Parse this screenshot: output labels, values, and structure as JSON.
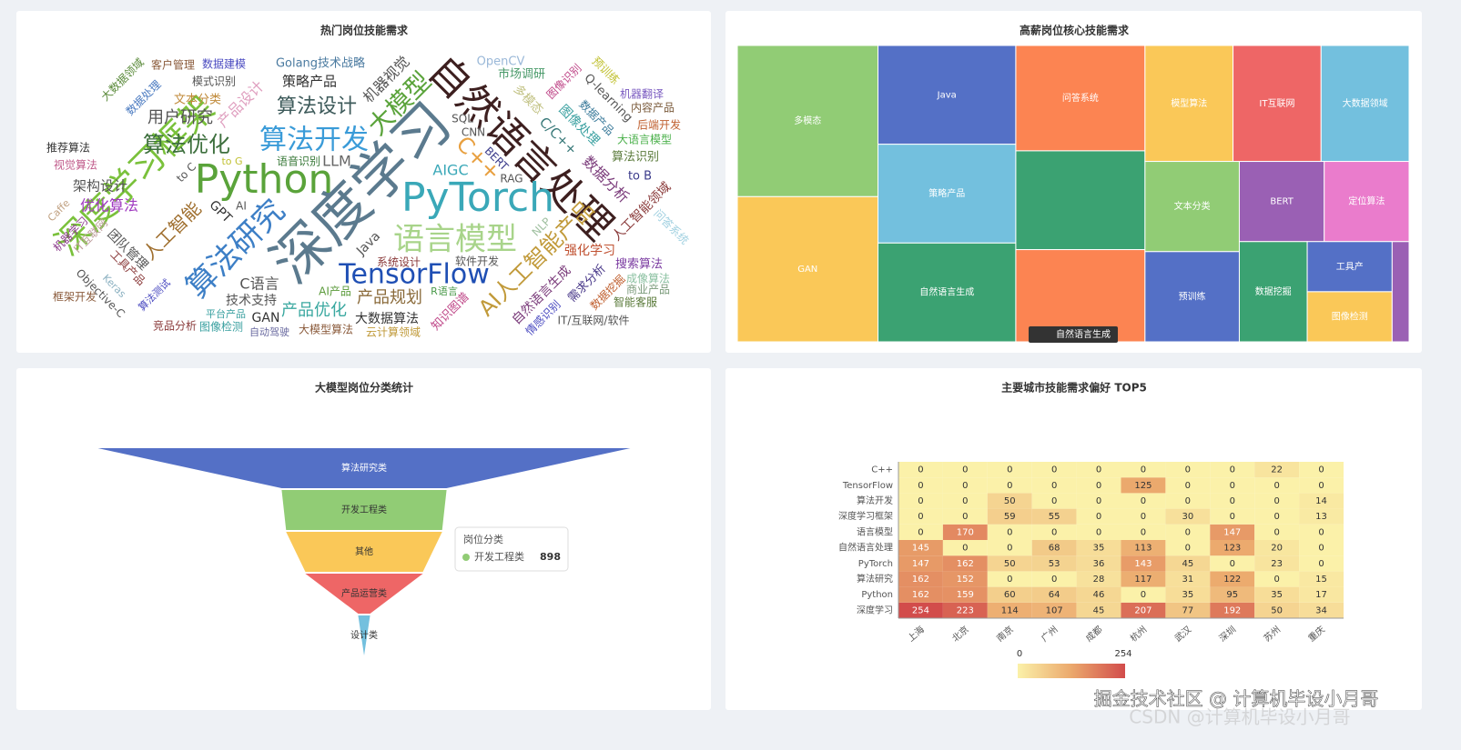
{
  "chart_data": [
    {
      "type": "wordcloud",
      "title": "热门岗位技能需求",
      "categories": [
        "深度学习",
        "自然语言处理",
        "Python",
        "PyTorch",
        "深度学习框架",
        "算法研究",
        "TensorFlow",
        "语言模型",
        "算法开发",
        "AI人工智能产品",
        "大模型",
        "算法优化",
        "算法设计",
        "人工智能",
        "C++",
        "用户研究",
        "产品优化",
        "产品规划",
        "C语言",
        "大数据算法",
        "AIGC",
        "LLM",
        "机器视觉",
        "策略产品",
        "Golang技术战略",
        "OpenCV",
        "市场调研",
        "数据分析",
        "强化学习",
        "人工智能领域",
        "自然语言生成",
        "需求分析",
        "搜索算法",
        "智能客服",
        "商业产品",
        "大语言模型",
        "算法识别",
        "to B",
        "内容产品",
        "后端开发",
        "机器翻译",
        "预训练",
        "图像处理",
        "推荐算法",
        "视觉算法",
        "架构设计",
        "优化算法",
        "GPT",
        "机器学习",
        "IT互联网",
        "团队管理",
        "工具产品",
        "Objective-C",
        "框架开发",
        "算法测试",
        "技术支持",
        "GAN",
        "竞品分析",
        "图像检测",
        "自动驾驶",
        "大模型算法",
        "云计算领域",
        "IT/互联网/软件",
        "知识图谱",
        "软件开发",
        "系统设计",
        "数据建模",
        "客户管理",
        "大数据领域",
        "数据处理",
        "模式识别",
        "文本分类",
        "产品设计",
        "to C",
        "to G",
        "语音识别",
        "SQL",
        "CNN",
        "BERT",
        "RAG",
        "NLP",
        "Java",
        "AI",
        "C/C++",
        "Q-learning",
        "数据产品",
        "多模态",
        "图像识别",
        "情感识别",
        "数据挖掘",
        "成像算法",
        "问答系统",
        "Keras",
        "Caffe",
        "平台产品",
        "AI产品",
        "R语言"
      ],
      "values": [
        62,
        44,
        44,
        44,
        38,
        34,
        30,
        34,
        30,
        24,
        28,
        24,
        22,
        20,
        24,
        18,
        18,
        18,
        16,
        14,
        16,
        16,
        16,
        15,
        13,
        13,
        13,
        16,
        14,
        14,
        14,
        13,
        13,
        12,
        12,
        12,
        13,
        13,
        12,
        12,
        12,
        12,
        14,
        12,
        12,
        15,
        16,
        14,
        12,
        12,
        14,
        12,
        12,
        12,
        11,
        14,
        14,
        12,
        12,
        11,
        12,
        12,
        12,
        13,
        12,
        12,
        12,
        12,
        12,
        12,
        12,
        13,
        16,
        12,
        11,
        12,
        12,
        12,
        12,
        12,
        12,
        14,
        12,
        15,
        13,
        12,
        13,
        12,
        12,
        12,
        12,
        12,
        11,
        11,
        11,
        12,
        11
      ],
      "colors": [
        "#5b7a8e",
        "#3d1f1f",
        "#5aa33a",
        "#3aa8b8",
        "#7ac13b",
        "#3d7fc6",
        "#1f4fb4",
        "#a8d48a",
        "#3a9bd8",
        "#c19a3a",
        "#5aa33a",
        "#3d6f3d",
        "#3d5a5a",
        "#a07030",
        "#e8a040",
        "#555555",
        "#3aa8a0",
        "#8a6a3a",
        "#555555",
        "#333333",
        "#3aa8b8",
        "#666666",
        "#555555",
        "#333333",
        "#4a7aa0",
        "#9ab8d8",
        "#4a9a6a",
        "#7a3a7a",
        "#c05030",
        "#8a3a3a",
        "#7a3a7a",
        "#4a3a8a",
        "#7a3aa0",
        "#5a7a3a",
        "#7a9a7a",
        "#4ab04a",
        "#5a7a3a",
        "#3a3a8a",
        "#7a5a3a",
        "#c06030",
        "#7a5ac0",
        "#c0c030",
        "#3aa0a0",
        "#333333",
        "#c05a8a",
        "#555555",
        "#a03ac0",
        "#333333",
        "#8a3a8a",
        "#c0a0a0",
        "#555555",
        "#8a3a3a",
        "#555555",
        "#8a5a3a",
        "#4a4ac0",
        "#555555",
        "#333333",
        "#8a3a3a",
        "#3aa0a0",
        "#6a6aa0",
        "#8a5a3a",
        "#c09a3a",
        "#555555",
        "#c04a8a",
        "#555555",
        "#8a3a3a",
        "#4a4ac0",
        "#8a5a3a",
        "#5a8a3a",
        "#4a7ac0",
        "#555555",
        "#c08a3a",
        "#e0a0c0",
        "#555555",
        "#c0c030",
        "#3a7a3a",
        "#555555",
        "#555555",
        "#3a3a8a",
        "#555555",
        "#a0c0a0",
        "#555555",
        "#555555",
        "#3a7a7a",
        "#555555",
        "#3a7a9a",
        "#c0c080",
        "#c04a8a",
        "#4a4ac0",
        "#c06030",
        "#8ac0a0",
        "#a0d0e0",
        "#8ab0c0",
        "#c0a080",
        "#3aa0a0",
        "#5a9a3a",
        "#4a9a4a"
      ]
    },
    {
      "type": "treemap",
      "title": "高薪岗位核心技能需求",
      "categories": [
        "多模态",
        "GAN",
        "Java",
        "策略产品",
        "自然语言生成",
        "问答系统",
        null,
        null,
        "模型算法",
        "IT互联网",
        "大数据领域",
        "文本分类",
        "预训练",
        "BERT",
        "定位算法",
        "数据挖掘",
        "工具产",
        "图像检测",
        null
      ],
      "values": [
        25,
        24,
        16,
        16,
        16,
        16,
        15,
        14,
        12,
        12,
        12,
        10,
        10,
        8,
        8,
        8,
        5,
        5,
        2
      ],
      "colors": [
        "#91cc75",
        "#fac858",
        "#5470c6",
        "#73c0de",
        "#3ba272",
        "#fc8452",
        "#3ba272",
        "#fc8452",
        "#fac858",
        "#ee6666",
        "#73c0de",
        "#91cc75",
        "#5470c6",
        "#9a60b4",
        "#ea7ccc",
        "#3ba272",
        "#5470c6",
        "#fac858",
        "#9a60b4"
      ],
      "breadcrumb": "自然语言生成"
    },
    {
      "type": "funnel",
      "title": "大模型岗位分类统计",
      "series_name": "岗位分类",
      "categories": [
        "算法研究类",
        "开发工程类",
        "其他",
        "产品运营类",
        "设计类"
      ],
      "values": [
        2900,
        898,
        850,
        640,
        65
      ],
      "colors": [
        "#5470c6",
        "#91cc75",
        "#fac858",
        "#ee6666",
        "#73c0de"
      ],
      "tooltip_index": 1
    },
    {
      "type": "heatmap",
      "title": "主要城市技能需求偏好 TOP5",
      "x_categories": [
        "上海",
        "北京",
        "南京",
        "广州",
        "成都",
        "杭州",
        "武汉",
        "深圳",
        "苏州",
        "重庆"
      ],
      "y_categories": [
        "深度学习",
        "Python",
        "算法研究",
        "PyTorch",
        "自然语言处理",
        "语言模型",
        "深度学习框架",
        "算法开发",
        "TensorFlow",
        "C++"
      ],
      "values": [
        [
          254,
          223,
          114,
          107,
          45,
          207,
          77,
          192,
          50,
          34
        ],
        [
          162,
          159,
          60,
          64,
          46,
          0,
          35,
          95,
          35,
          17
        ],
        [
          162,
          152,
          0,
          0,
          28,
          117,
          31,
          122,
          0,
          15
        ],
        [
          147,
          162,
          50,
          53,
          36,
          143,
          45,
          0,
          23,
          0
        ],
        [
          145,
          0,
          0,
          68,
          35,
          113,
          0,
          123,
          20,
          0
        ],
        [
          0,
          170,
          0,
          0,
          0,
          0,
          0,
          147,
          0,
          0
        ],
        [
          0,
          0,
          59,
          55,
          0,
          0,
          30,
          0,
          0,
          13
        ],
        [
          0,
          0,
          50,
          0,
          0,
          0,
          0,
          0,
          0,
          14
        ],
        [
          0,
          0,
          0,
          0,
          0,
          125,
          0,
          0,
          0,
          0
        ],
        [
          0,
          0,
          0,
          0,
          0,
          0,
          0,
          0,
          22,
          0
        ]
      ],
      "visualmap": {
        "min": 0,
        "max": 254,
        "colors": [
          "#fbf1a9",
          "#eba86c",
          "#d24c4b"
        ]
      }
    }
  ],
  "watermark": {
    "main": "掘金技术社区 @ 计算机毕设小月哥",
    "faint": "CSDN @计算机毕设小月哥"
  }
}
